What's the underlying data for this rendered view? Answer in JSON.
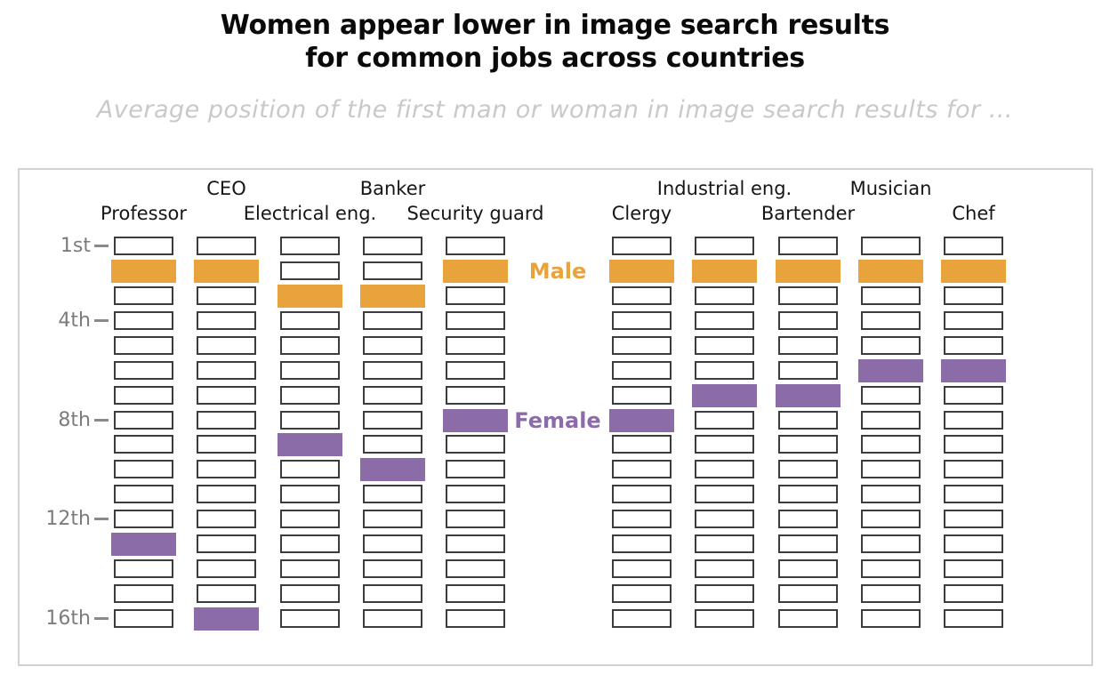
{
  "header": {
    "title_line1": "Women appear lower in image search results",
    "title_line2": "for common jobs across countries",
    "subtitle": "Average position of the first man or woman in image search results for …"
  },
  "chart_data": {
    "type": "heatmap",
    "style": "position-waffle-grid",
    "description": "Each column is a job query; 16 stacked slots represent image search result positions 1st (top) to 16th (bottom). The orange filled cell marks the average position of the first man, the purple filled cell the average position of the first woman.",
    "rows_per_column": 16,
    "categories": [
      "Professor",
      "CEO",
      "Electrical eng.",
      "Banker",
      "Security guard",
      "Clergy",
      "Industrial eng.",
      "Bartender",
      "Musician",
      "Chef"
    ],
    "series": [
      {
        "name": "Male",
        "color": "#E8A33C",
        "values": [
          2,
          2,
          3,
          3,
          2,
          2,
          2,
          2,
          2,
          2
        ]
      },
      {
        "name": "Female",
        "color": "#8B6CA8",
        "values": [
          13,
          16,
          9,
          10,
          8,
          8,
          7,
          7,
          6,
          6
        ]
      }
    ],
    "y_axis": {
      "direction": "top-is-1st",
      "range": [
        1,
        16
      ],
      "ticks": [
        {
          "label": "1st",
          "row": 1
        },
        {
          "label": "4th",
          "row": 4
        },
        {
          "label": "8th",
          "row": 8
        },
        {
          "label": "12th",
          "row": 12
        },
        {
          "label": "16th",
          "row": 16
        }
      ]
    },
    "legend": {
      "position": "between column groups",
      "items": [
        {
          "label": "Male",
          "color": "#E8A33C",
          "anchor_row": 2
        },
        {
          "label": "Female",
          "color": "#8B6CA8",
          "anchor_row": 8
        }
      ]
    },
    "column_groups": [
      [
        0,
        1,
        2,
        3,
        4
      ],
      [
        5,
        6,
        7,
        8,
        9
      ]
    ],
    "header_level": [
      "lower",
      "upper",
      "lower",
      "upper",
      "lower",
      "lower",
      "upper",
      "lower",
      "upper",
      "lower"
    ]
  },
  "colors": {
    "male": "#E8A33C",
    "female": "#8B6CA8",
    "cell_border": "#3c3c3c",
    "panel_border": "#d2d2d2",
    "tick_text": "#7c7c7c",
    "tick_mark": "#8a8a8a",
    "subtitle_text": "#c9c9c9",
    "title_text": "#0a0a0a",
    "header_text": "#161616",
    "background": "#ffffff"
  }
}
